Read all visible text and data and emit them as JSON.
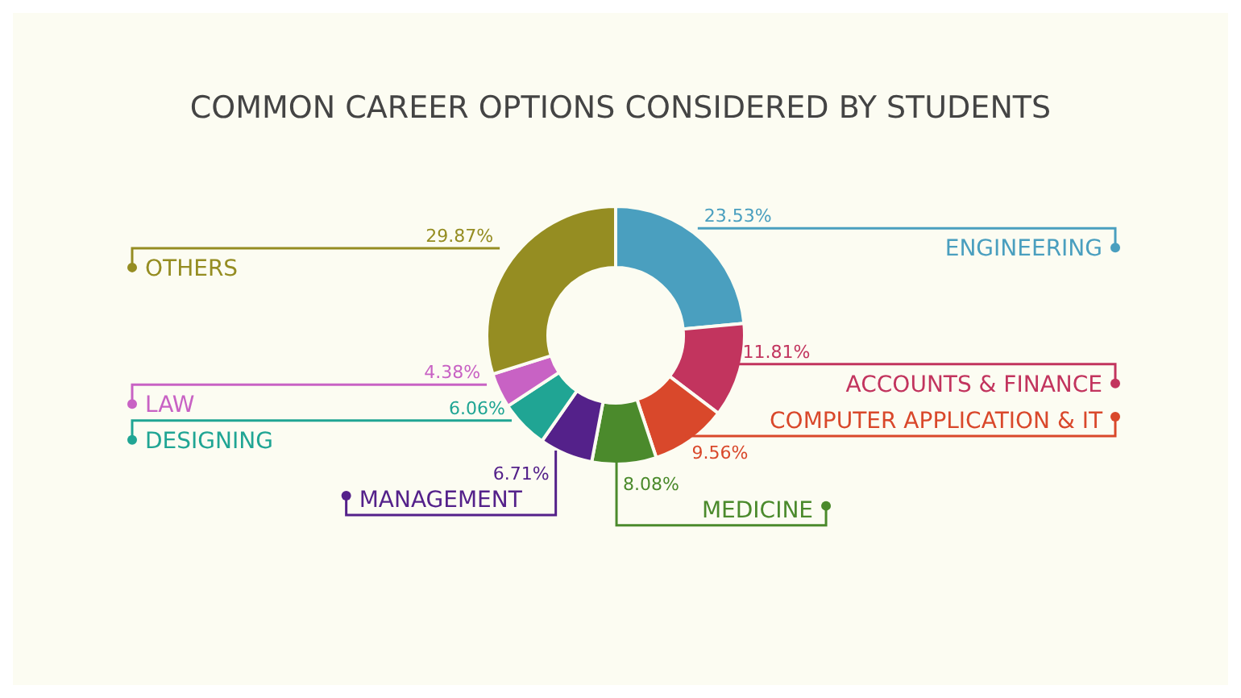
{
  "chart_data": {
    "type": "donut",
    "title": "COMMON CAREER OPTIONS CONSIDERED BY STUDENTS",
    "categories": [
      "ENGINEERING",
      "ACCOUNTS & FINANCE",
      "COMPUTER APPLICATION & IT",
      "MEDICINE",
      "MANAGEMENT",
      "DESIGNING",
      "LAW",
      "OTHERS"
    ],
    "values": [
      23.53,
      11.81,
      9.56,
      8.08,
      6.71,
      6.06,
      4.38,
      29.87
    ],
    "value_labels": [
      "23.53%",
      "11.81%",
      "9.56%",
      "8.08%",
      "6.71%",
      "6.06%",
      "4.38%",
      "29.87%"
    ],
    "colors": [
      "#4a9fbf",
      "#c2345e",
      "#d9482b",
      "#4b8a2c",
      "#54218a",
      "#20a594",
      "#c862c4",
      "#958d22"
    ],
    "legend": "left"
  }
}
